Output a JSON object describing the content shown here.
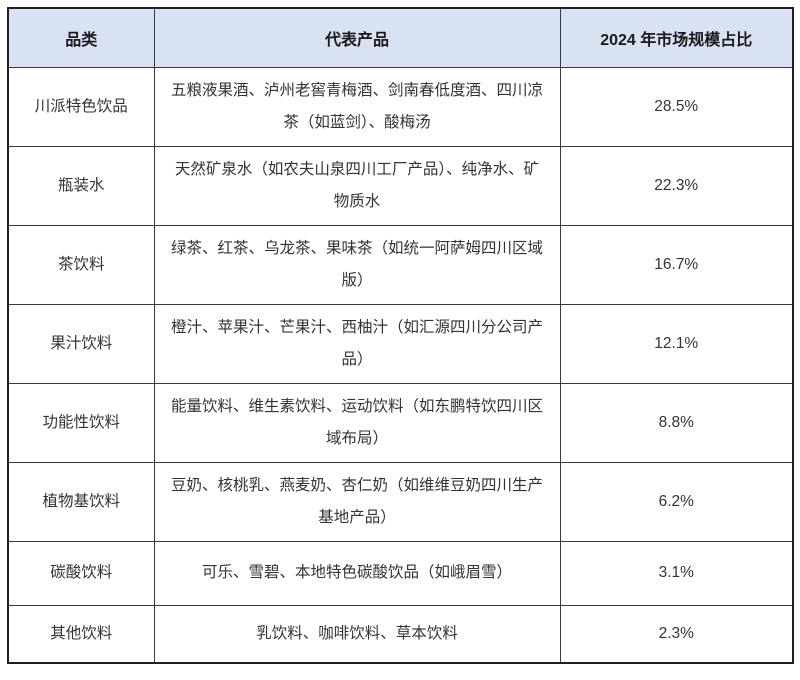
{
  "table": {
    "header_bg": "#d9e2f3",
    "border_color": "#1f1f1f",
    "text_color": "#333333",
    "columns": [
      "品类",
      "代表产品",
      "2024 年市场规模占比"
    ],
    "rows": [
      {
        "category": "川派特色饮品",
        "products": "五粮液果酒、泸州老窖青梅酒、剑南春低度酒、四川凉茶（如蓝剑）、酸梅汤",
        "share": "28.5%"
      },
      {
        "category": "瓶装水",
        "products": "天然矿泉水（如农夫山泉四川工厂产品）、纯净水、矿物质水",
        "share": "22.3%"
      },
      {
        "category": "茶饮料",
        "products": "绿茶、红茶、乌龙茶、果味茶（如统一阿萨姆四川区域版）",
        "share": "16.7%"
      },
      {
        "category": "果汁饮料",
        "products": "橙汁、苹果汁、芒果汁、西柚汁（如汇源四川分公司产品）",
        "share": "12.1%"
      },
      {
        "category": "功能性饮料",
        "products": "能量饮料、维生素饮料、运动饮料（如东鹏特饮四川区域布局）",
        "share": "8.8%"
      },
      {
        "category": "植物基饮料",
        "products": "豆奶、核桃乳、燕麦奶、杏仁奶（如维维豆奶四川生产基地产品）",
        "share": "6.2%"
      },
      {
        "category": "碳酸饮料",
        "products": "可乐、雪碧、本地特色碳酸饮品（如峨眉雪）",
        "share": "3.1%"
      },
      {
        "category": "其他饮料",
        "products": "乳饮料、咖啡饮料、草本饮料",
        "share": "2.3%"
      }
    ]
  }
}
